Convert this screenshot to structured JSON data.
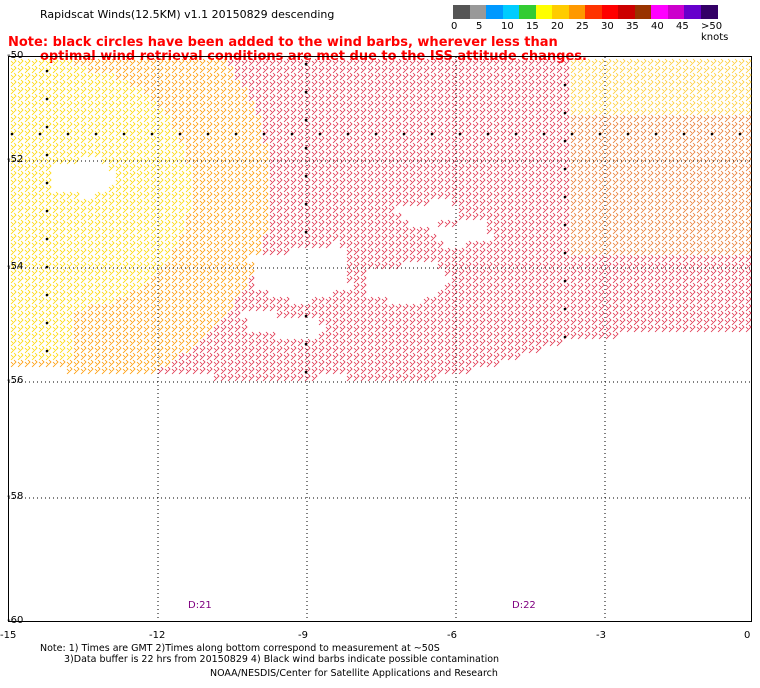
{
  "title": "Rapidscat Winds(12.5KM) v1.1 20150829 descending",
  "warning": {
    "line1": "Note: black circles have been added to the wind barbs, wherever less than",
    "line2": "optimal wind retrieval conditions are met due to the ISS attitude changes."
  },
  "legend": {
    "colors": [
      "#555555",
      "#999999",
      "#0099ff",
      "#00ccff",
      "#33cc33",
      "#ffff00",
      "#ffcc00",
      "#ff9900",
      "#ff3300",
      "#ff0000",
      "#cc0000",
      "#993300",
      "#ff00ff",
      "#cc00cc",
      "#6600cc",
      "#330066"
    ],
    "labels": [
      "0",
      "5",
      "10",
      "15",
      "20",
      "25",
      "30",
      "35",
      "40",
      "45",
      ">50 knots"
    ]
  },
  "axes": {
    "y_labels": [
      "-50",
      "-52",
      "-54",
      "-56",
      "-58",
      "-60"
    ],
    "x_labels": [
      "-15",
      "-12",
      "-9",
      "-6",
      "-3",
      "0"
    ]
  },
  "time_labels": [
    "D:21",
    "D:22"
  ],
  "footnote": {
    "line1": "Note: 1) Times are GMT 2)Times along bottom correspond to measurement at ~50S",
    "line2": "3)Data buffer is 22 hrs from 20150829 4) Black wind barbs indicate possible contamination"
  },
  "credit": "NOAA/NESDIS/Center for Satellite Applications and Research"
}
